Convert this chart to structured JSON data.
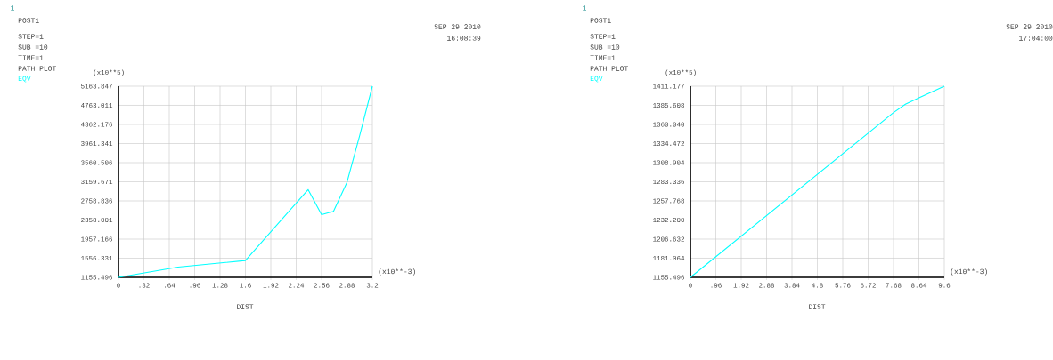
{
  "chart_data": [
    {
      "type": "line",
      "xlabel": "DIST",
      "ylabel": "(x10**5)",
      "grid": true,
      "annotations": [
        "1",
        "POST1",
        "STEP=1",
        "SUB =10",
        "TIME=1",
        "PATH PLOT",
        "SEP 29 2010",
        "16:08:39",
        "(x10**-3)"
      ],
      "xlim": [
        0,
        3.2
      ],
      "xticks": [
        0,
        {
          "value": 0.32,
          "label": ".32"
        },
        {
          "value": 0.64,
          "label": ".64"
        },
        {
          "value": 0.96,
          "label": ".96"
        },
        1.28,
        1.6,
        1.92,
        2.24,
        2.56,
        2.88,
        3.2
      ],
      "ylim": [
        1155.496,
        5163.847
      ],
      "yticks": [
        1155.496,
        1556.331,
        1957.166,
        2358.001,
        2758.836,
        3159.671,
        3560.506,
        3961.341,
        4362.176,
        4763.011,
        5163.847
      ],
      "series": [
        {
          "name": "EQV",
          "color": "#00ffff",
          "x": [
            0,
            0.75,
            1.6,
            2.39,
            2.56,
            2.71,
            2.88,
            3.04,
            3.2
          ],
          "values": [
            1155.496,
            1369,
            1507,
            2996,
            2469,
            2538,
            3147,
            4127,
            5163.847
          ]
        }
      ]
    },
    {
      "type": "line",
      "xlabel": "DIST",
      "ylabel": "(x10**5)",
      "grid": true,
      "annotations": [
        "1",
        "POST1",
        "STEP=1",
        "SUB =10",
        "TIME=1",
        "PATH PLOT",
        "SEP 29 2010",
        "17:04:00",
        "(x10**-3)"
      ],
      "xlim": [
        0,
        9.6
      ],
      "xticks": [
        0,
        {
          "value": 0.96,
          "label": ".96"
        },
        1.92,
        2.88,
        3.84,
        4.8,
        5.76,
        6.72,
        7.68,
        8.64,
        9.6
      ],
      "ylim": [
        1155.496,
        1411.177
      ],
      "yticks": [
        1155.496,
        1181.064,
        1206.632,
        {
          "value": 1232.2,
          "label": "1232.200"
        },
        1257.768,
        1283.336,
        1308.904,
        1334.472,
        {
          "value": 1360.04,
          "label": "1360.040"
        },
        1385.608,
        1411.177
      ],
      "series": [
        {
          "name": "EQV",
          "color": "#00ffff",
          "x": [
            0,
            7.68,
            8.13,
            8.68,
            9.6
          ],
          "values": [
            1155.496,
            1375.9,
            1387.1,
            1396.4,
            1411.177
          ]
        }
      ]
    }
  ]
}
